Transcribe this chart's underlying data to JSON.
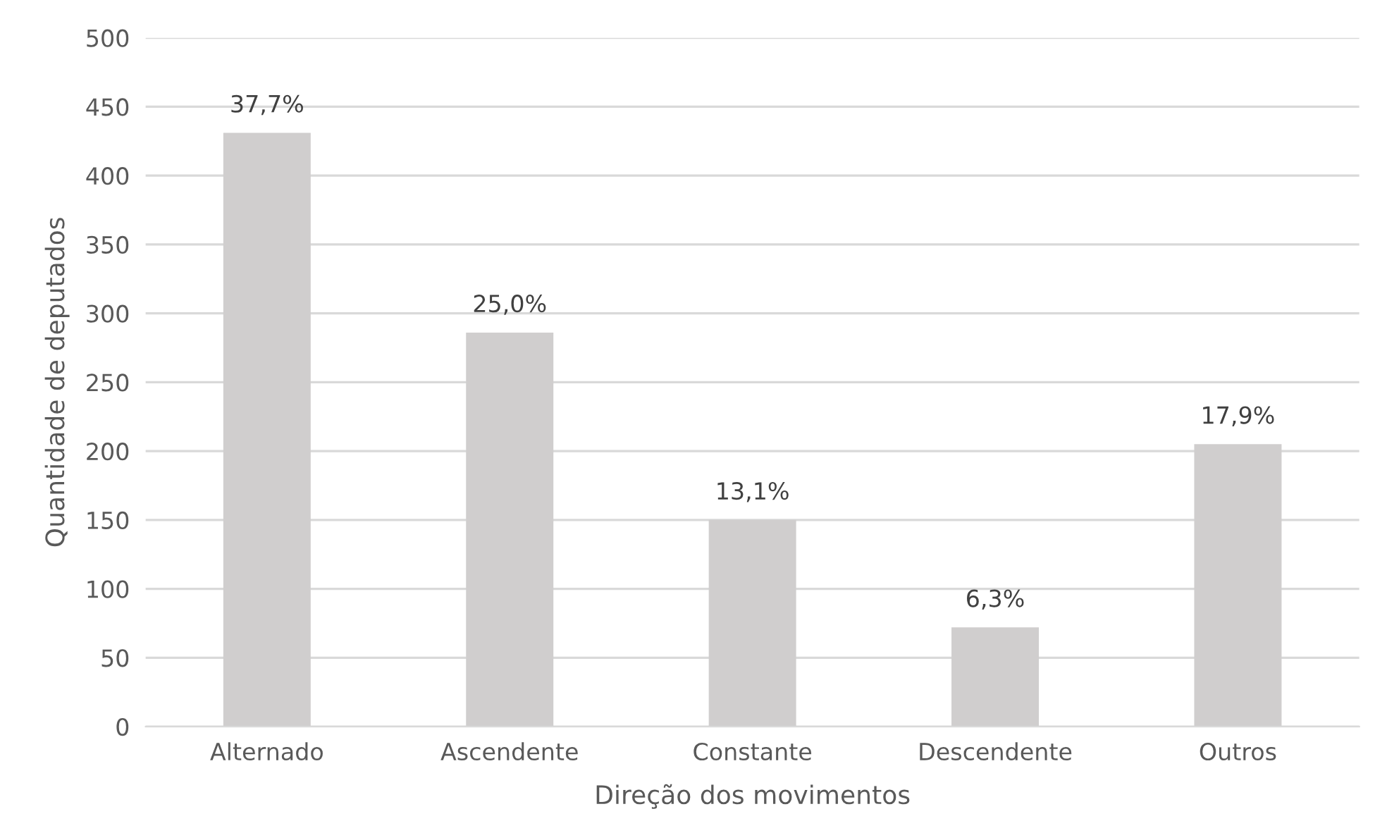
{
  "chart_data": {
    "type": "bar",
    "xlabel": "Direção dos movimentos",
    "ylabel": "Quantidade de deputados",
    "categories": [
      "Alternado",
      "Ascendente",
      "Constante",
      "Descendente",
      "Outros"
    ],
    "values": [
      431,
      286,
      150,
      72,
      205
    ],
    "annotations": [
      {
        "text": "37,7%",
        "x": "Alternado",
        "y": 431
      },
      {
        "text": "25,0%",
        "x": "Ascendente",
        "y": 286
      },
      {
        "text": "13,1%",
        "x": "Constante",
        "y": 150
      },
      {
        "text": "6,3%",
        "x": "Descendente",
        "y": 72
      },
      {
        "text": "17,9%",
        "x": "Outros",
        "y": 205
      }
    ],
    "color": "#d0cece",
    "ylim": [
      0,
      500
    ],
    "yticks": [
      0,
      50,
      100,
      150,
      200,
      250,
      300,
      350,
      400,
      450,
      500
    ],
    "grid": "y"
  }
}
